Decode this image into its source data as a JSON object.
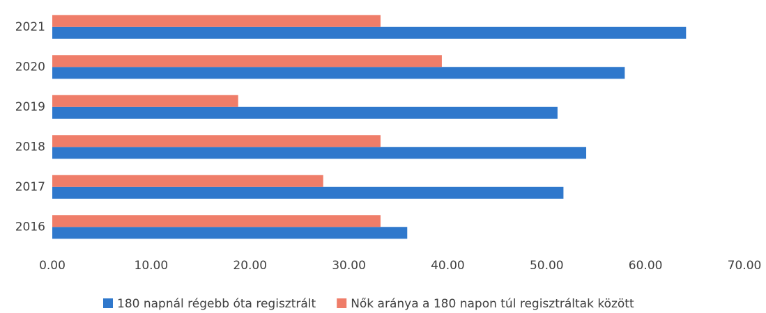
{
  "chart_data": {
    "type": "hbar",
    "categories": [
      "2021",
      "2020",
      "2019",
      "2018",
      "2017",
      "2016"
    ],
    "series": [
      {
        "name": "180 napnál régebb óta regisztrált",
        "color": "#2f78cc",
        "values": [
          64.1,
          57.9,
          51.1,
          54.0,
          51.7,
          35.9
        ]
      },
      {
        "name": "Nők aránya a 180 napon túl regisztráltak között",
        "color": "#ef7d69",
        "values": [
          33.2,
          39.4,
          18.8,
          33.2,
          27.4,
          33.2
        ]
      }
    ],
    "xlim": [
      0,
      70
    ],
    "xticks": [
      {
        "value": 0,
        "label": "0.00"
      },
      {
        "value": 10,
        "label": "10.00"
      },
      {
        "value": 20,
        "label": "20.00"
      },
      {
        "value": 30,
        "label": "30.00"
      },
      {
        "value": 40,
        "label": "40.00"
      },
      {
        "value": 50,
        "label": "50.00"
      },
      {
        "value": 60,
        "label": "60.00"
      },
      {
        "value": 70,
        "label": "70.00"
      }
    ],
    "grid": false,
    "legend": "bottom"
  }
}
